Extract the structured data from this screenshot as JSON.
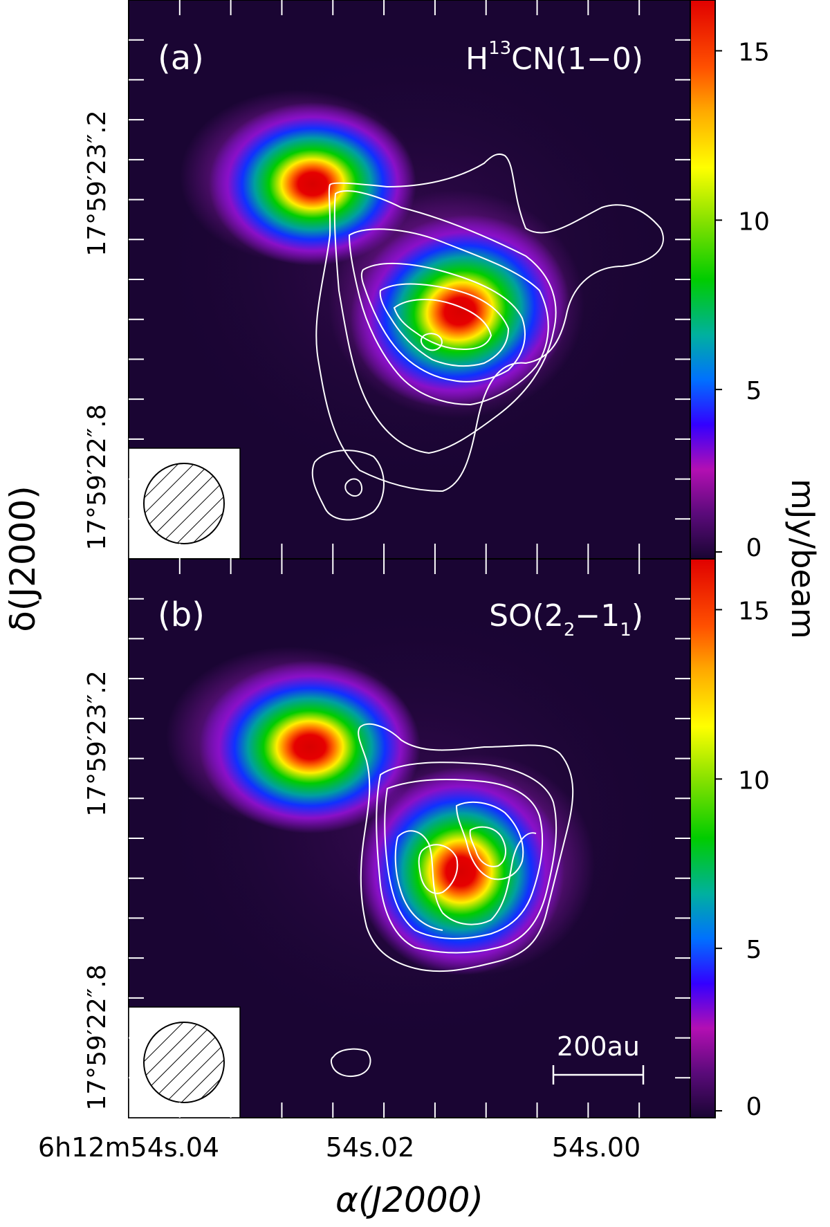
{
  "chart_data": [
    {
      "type": "heatmap",
      "panel_label": "(a)",
      "title_main": "H",
      "title_sup": "13",
      "title_rest": "CN(1−0)",
      "overlay": "contours",
      "color_min": 0,
      "color_max": 16.5,
      "cbar_ticks": [
        "0",
        "5",
        "10",
        "15"
      ],
      "cbar_tick_values": [
        0,
        5,
        10,
        15
      ],
      "peaks": [
        {
          "ra": "54.027",
          "dec": "23.20",
          "value": 16.5
        },
        {
          "ra": "54.014",
          "dec": "23.00",
          "value": 15.5
        }
      ],
      "y_tick_labels": [
        "17°59′23″.2",
        "17°59′22″.8"
      ]
    },
    {
      "type": "heatmap",
      "panel_label": "(b)",
      "title_main": "SO(2",
      "title_sub1": "2",
      "title_mid": "−1",
      "title_sub2": "1",
      "title_end": ")",
      "overlay": "contours",
      "color_min": 0,
      "color_max": 16.5,
      "cbar_ticks": [
        "0",
        "5",
        "10",
        "15"
      ],
      "cbar_tick_values": [
        0,
        5,
        10,
        15
      ],
      "peaks": [
        {
          "ra": "54.027",
          "dec": "23.20",
          "value": 16.5
        },
        {
          "ra": "54.013",
          "dec": "23.00",
          "value": 16.5
        }
      ],
      "y_tick_labels": [
        "17°59′23″.2",
        "17°59′22″.8"
      ],
      "scale_bar": "200au"
    }
  ],
  "axes": {
    "xlabel": "α(J2000)",
    "ylabel": "δ(J2000)",
    "cbar_label": "mJy/beam",
    "x_tick_labels": [
      "6h12m54s.04",
      "54s.02",
      "54s.00"
    ]
  }
}
